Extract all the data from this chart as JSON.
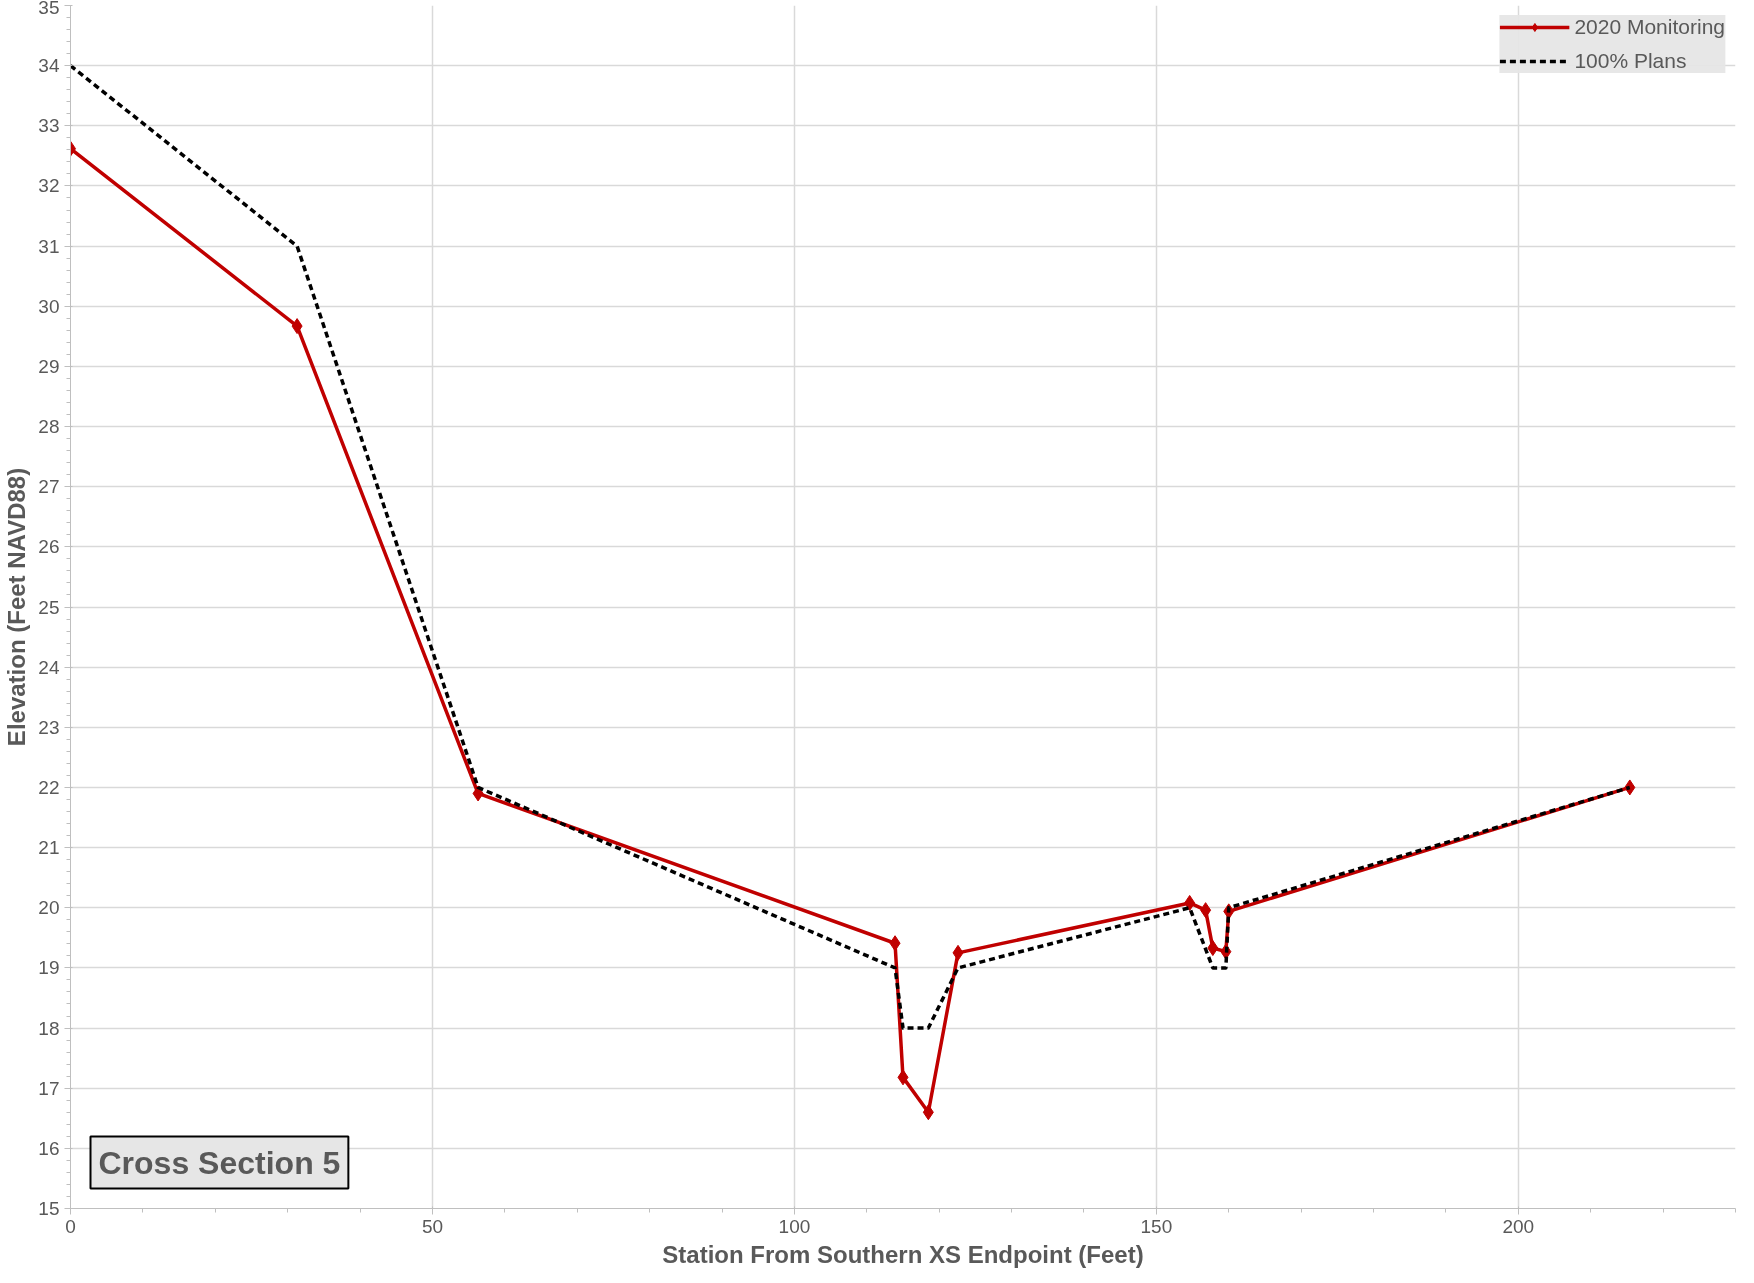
{
  "chart_data": {
    "type": "line",
    "xlabel": "Station From Southern XS Endpoint (Feet)",
    "ylabel": "Elevation (Feet NAVD88)",
    "xlim": [
      0,
      230
    ],
    "xticks": [
      0,
      50,
      100,
      150,
      200
    ],
    "ylim": [
      15,
      35
    ],
    "yticks": [
      15,
      16,
      17,
      18,
      19,
      20,
      21,
      22,
      23,
      24,
      25,
      26,
      27,
      28,
      29,
      30,
      31,
      32,
      33,
      34,
      35
    ],
    "grid": true,
    "legend": "top right",
    "annotations": [
      "Cross Section 5"
    ],
    "series": [
      {
        "name": "2020 Monitoring",
        "color": "#c00000",
        "marker": "diamond",
        "line_style": "solid",
        "x": [
          0,
          31.3,
          56.3,
          113.9,
          115.0,
          118.5,
          122.6,
          154.6,
          156.8,
          157.8,
          159.6,
          160.0,
          215.4
        ],
        "values": [
          32.62,
          29.67,
          21.9,
          19.41,
          17.18,
          16.6,
          19.25,
          20.08,
          19.96,
          19.33,
          19.27,
          19.94,
          22.0
        ]
      },
      {
        "name": "100% Plans",
        "color": "#000000",
        "marker": "none",
        "line_style": "dashed",
        "x": [
          0,
          31.3,
          56.3,
          113.9,
          115.0,
          118.5,
          122.6,
          154.6,
          157.8,
          159.6,
          160.0,
          215.4
        ],
        "values": [
          34,
          31,
          22,
          19,
          18,
          18,
          19,
          20,
          19,
          19,
          20,
          22
        ]
      }
    ]
  }
}
